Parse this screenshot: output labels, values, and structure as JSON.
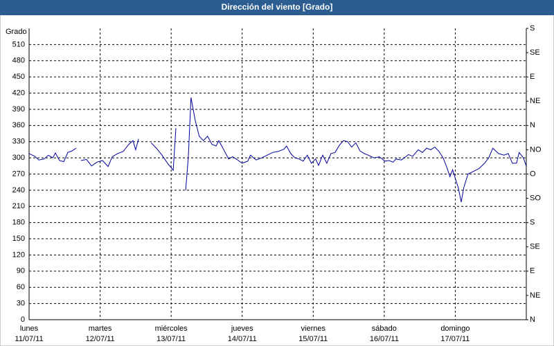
{
  "chart_data": {
    "type": "line",
    "title": "Dirección del viento [Grado]",
    "y_label": "Grado",
    "color": "#0000a0",
    "grid": true,
    "xlim": [
      0,
      168
    ],
    "xticks": [
      {
        "value": 0,
        "label": [
          "lunes",
          "11/07/11"
        ]
      },
      {
        "value": 24,
        "label": [
          "martes",
          "12/07/11"
        ]
      },
      {
        "value": 48,
        "label": [
          "miércoles",
          "13/07/11"
        ]
      },
      {
        "value": 72,
        "label": [
          "jueves",
          "14/07/11"
        ]
      },
      {
        "value": 96,
        "label": [
          "viernes",
          "15/07/11"
        ]
      },
      {
        "value": 120,
        "label": [
          "sábado",
          "16/07/11"
        ]
      },
      {
        "value": 144,
        "label": [
          "domingo",
          "17/07/11"
        ]
      }
    ],
    "ylim": [
      0,
      540
    ],
    "yticks": [
      0,
      30,
      60,
      90,
      120,
      150,
      180,
      210,
      240,
      270,
      300,
      330,
      360,
      390,
      420,
      450,
      480,
      510
    ],
    "y2lim": [
      0,
      540
    ],
    "y2ticks": [
      {
        "value": 0,
        "label": "N"
      },
      {
        "value": 45,
        "label": "NE"
      },
      {
        "value": 90,
        "label": "E"
      },
      {
        "value": 135,
        "label": "SE"
      },
      {
        "value": 180,
        "label": "S"
      },
      {
        "value": 225,
        "label": "SO"
      },
      {
        "value": 270,
        "label": "O"
      },
      {
        "value": 315,
        "label": "NO"
      },
      {
        "value": 360,
        "label": "N"
      },
      {
        "value": 405,
        "label": "NE"
      },
      {
        "value": 450,
        "label": "E"
      },
      {
        "value": 495,
        "label": "SE"
      },
      {
        "value": 540,
        "label": "S"
      }
    ],
    "x": [
      0,
      1.9,
      3.3,
      5.1,
      6.5,
      8.0,
      8.9,
      10.3,
      11.7,
      13.1,
      14.5,
      15.9,
      16.7,
      17.5,
      19.4,
      21.1,
      22.9,
      24.8,
      26.7,
      28.1,
      29.9,
      31.8,
      33.7,
      35.1,
      36.0,
      37.0,
      39.0,
      41.2,
      43.0,
      44.9,
      46.8,
      48.7,
      49.6,
      51.2,
      52.9,
      53.8,
      54.7,
      56.1,
      57.5,
      58.9,
      60.3,
      61.8,
      63.2,
      64.1,
      65.5,
      67.4,
      68.8,
      70.2,
      72.0,
      73.9,
      74.8,
      76.7,
      78.6,
      80.5,
      82.3,
      84.2,
      86.1,
      87.0,
      88.4,
      89.8,
      91.2,
      92.6,
      94.0,
      95.4,
      96.8,
      97.8,
      99.2,
      100.6,
      102.0,
      103.4,
      104.8,
      106.2,
      107.6,
      109.0,
      110.4,
      111.8,
      113.2,
      114.6,
      116.5,
      118.4,
      120.2,
      121.6,
      123.0,
      124.0,
      125.8,
      127.2,
      128.2,
      129.6,
      131.5,
      132.9,
      134.3,
      135.7,
      137.1,
      138.5,
      139.9,
      141.3,
      142.2,
      143.1,
      144.1,
      145.0,
      146.0,
      146.9,
      148.3,
      150.2,
      152.0,
      153.9,
      155.3,
      156.7,
      158.6,
      160.5,
      161.9,
      163.3,
      164.7,
      165.6,
      167.0,
      168
    ],
    "values": [
      308,
      303,
      296,
      298,
      305,
      300,
      309,
      295,
      293,
      310,
      313,
      318,
      null,
      295,
      297,
      285,
      292,
      295,
      284,
      302,
      308,
      312,
      325,
      332,
      315,
      335,
      null,
      328,
      318,
      305,
      290,
      277,
      355,
      null,
      240,
      300,
      412,
      370,
      340,
      332,
      340,
      325,
      322,
      332,
      318,
      298,
      302,
      297,
      290,
      294,
      305,
      296,
      300,
      305,
      310,
      312,
      316,
      322,
      308,
      300,
      298,
      294,
      305,
      290,
      298,
      286,
      305,
      290,
      308,
      310,
      323,
      332,
      330,
      320,
      328,
      313,
      308,
      305,
      300,
      302,
      294,
      295,
      292,
      298,
      296,
      302,
      306,
      303,
      315,
      310,
      318,
      315,
      320,
      312,
      300,
      280,
      265,
      278,
      260,
      245,
      218,
      245,
      270,
      275,
      280,
      290,
      300,
      318,
      308,
      305,
      308,
      290,
      290,
      310,
      300,
      285
    ]
  }
}
